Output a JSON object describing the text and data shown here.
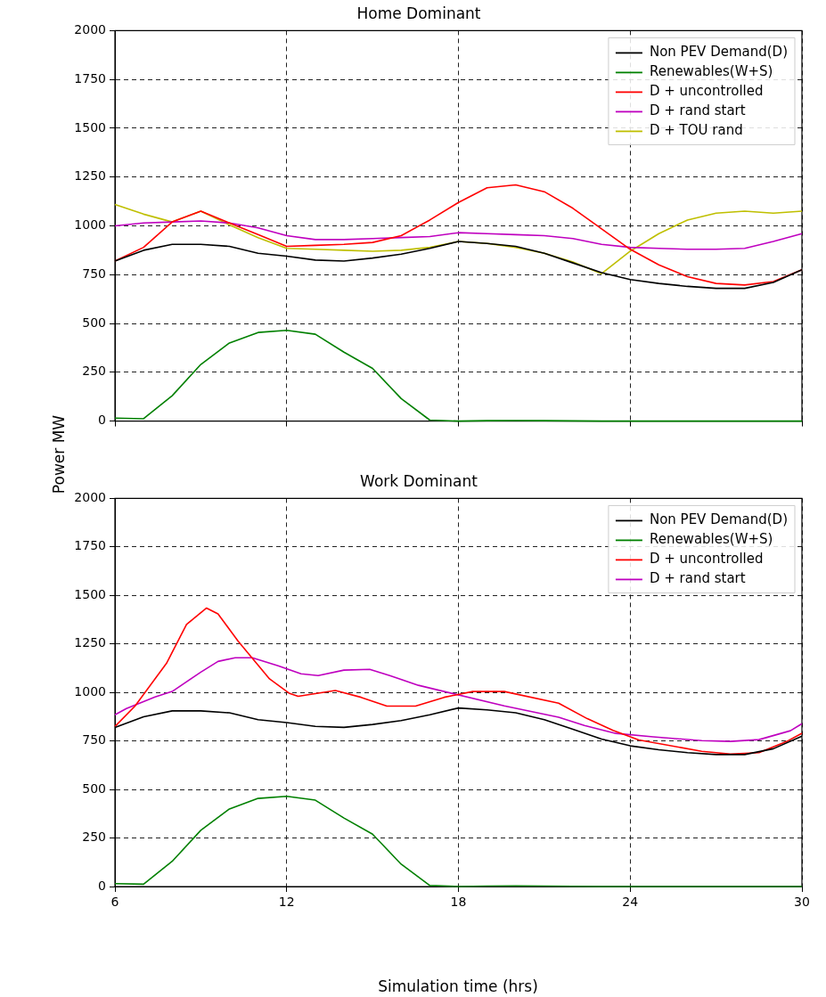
{
  "chart_data": [
    {
      "type": "line",
      "title": "Home Dominant",
      "ylabel": "Power MW",
      "x": [
        6,
        7,
        8,
        9,
        10,
        11,
        12,
        13,
        14,
        15,
        16,
        17,
        18,
        19,
        20,
        21,
        22,
        23,
        24,
        25,
        26,
        27,
        28,
        29,
        30
      ],
      "xlim": [
        6,
        30
      ],
      "xticks": [
        6,
        12,
        18,
        24,
        30
      ],
      "ylim": [
        0,
        2000
      ],
      "yticks": [
        0,
        250,
        500,
        750,
        1000,
        1250,
        1500,
        1750,
        2000
      ],
      "grid": true,
      "legend": "top right",
      "tick_labels": "y",
      "line_style": "solid",
      "marker": "none",
      "series": [
        {
          "name": "Non PEV Demand(D)",
          "color": "#000000",
          "values": [
            820,
            875,
            905,
            905,
            895,
            860,
            845,
            825,
            820,
            835,
            855,
            885,
            920,
            910,
            895,
            860,
            810,
            760,
            725,
            705,
            690,
            680,
            680,
            710,
            775
          ]
        },
        {
          "name": "Renewables(W+S)",
          "color": "#008000",
          "values": [
            15,
            12,
            130,
            290,
            400,
            454,
            465,
            445,
            353,
            270,
            115,
            5,
            0,
            2,
            3,
            2,
            1,
            0,
            0,
            0,
            0,
            0,
            0,
            0,
            0
          ]
        },
        {
          "name": "D + uncontrolled",
          "color": "#ff0000",
          "values": [
            820,
            890,
            1020,
            1075,
            1015,
            955,
            895,
            900,
            905,
            915,
            950,
            1030,
            1120,
            1195,
            1210,
            1175,
            1090,
            985,
            880,
            800,
            740,
            705,
            697,
            715,
            775
          ]
        },
        {
          "name": "D + rand start",
          "color": "#bf00bf",
          "values": [
            1000,
            1015,
            1020,
            1025,
            1015,
            990,
            950,
            930,
            930,
            935,
            940,
            945,
            965,
            960,
            955,
            950,
            935,
            905,
            890,
            885,
            880,
            880,
            885,
            920,
            960
          ]
        },
        {
          "name": "D + TOU rand",
          "color": "#bfbf00",
          "values": [
            1110,
            1060,
            1020,
            1075,
            1005,
            940,
            885,
            880,
            875,
            870,
            875,
            890,
            920,
            910,
            890,
            860,
            815,
            755,
            870,
            960,
            1030,
            1065,
            1075,
            1065,
            1075
          ]
        }
      ]
    },
    {
      "type": "line",
      "title": "Work Dominant",
      "xlabel": "Simulation time (hrs)",
      "x": [
        6,
        7,
        8,
        9,
        10,
        11,
        12,
        13,
        14,
        15,
        16,
        17,
        18,
        19,
        20,
        21,
        22,
        23,
        24,
        25,
        26,
        27,
        28,
        29,
        30
      ],
      "xlim": [
        6,
        30
      ],
      "xticks": [
        6,
        12,
        18,
        24,
        30
      ],
      "ylim": [
        0,
        2000
      ],
      "yticks": [
        0,
        250,
        500,
        750,
        1000,
        1250,
        1500,
        1750,
        2000
      ],
      "grid": true,
      "legend": "top right",
      "line_style": "solid",
      "marker": "none",
      "series": [
        {
          "name": "Non PEV Demand(D)",
          "color": "#000000",
          "values": [
            820,
            875,
            905,
            905,
            895,
            860,
            845,
            825,
            820,
            835,
            855,
            885,
            920,
            910,
            895,
            860,
            810,
            760,
            725,
            705,
            690,
            680,
            680,
            710,
            775
          ]
        },
        {
          "name": "Renewables(W+S)",
          "color": "#008000",
          "values": [
            15,
            12,
            130,
            290,
            400,
            454,
            465,
            445,
            353,
            270,
            115,
            5,
            0,
            2,
            3,
            2,
            1,
            0,
            0,
            0,
            0,
            0,
            0,
            0,
            0
          ]
        },
        {
          "name": "D + uncontrolled",
          "color": "#ff0000",
          "x": [
            6,
            6.7,
            7.8,
            8.5,
            9.2,
            9.6,
            10.3,
            11.4,
            12.1,
            12.4,
            13.7,
            14.6,
            15.5,
            16.5,
            17.5,
            18.5,
            19.6,
            21.5,
            22.5,
            23.4,
            24.3,
            26.5,
            27.5,
            28.5,
            29.5,
            30
          ],
          "values": [
            825,
            930,
            1150,
            1350,
            1435,
            1405,
            1265,
            1070,
            995,
            980,
            1010,
            975,
            930,
            930,
            975,
            1005,
            1005,
            945,
            865,
            805,
            755,
            697,
            683,
            690,
            750,
            790
          ]
        },
        {
          "name": "D + rand start",
          "color": "#bf00bf",
          "x": [
            6,
            6.4,
            7.4,
            8,
            9,
            9.6,
            10.2,
            10.8,
            11.7,
            12.5,
            13.1,
            14,
            14.9,
            15.6,
            16.6,
            17.5,
            19.6,
            21.5,
            22.4,
            23.5,
            24.8,
            26.5,
            27.5,
            28.5,
            29.6,
            30
          ],
          "values": [
            885,
            917,
            977,
            1005,
            1105,
            1160,
            1179,
            1179,
            1138,
            1096,
            1087,
            1115,
            1119,
            1087,
            1037,
            1005,
            931,
            872,
            830,
            789,
            771,
            752,
            748,
            757,
            803,
            839
          ]
        }
      ]
    }
  ]
}
